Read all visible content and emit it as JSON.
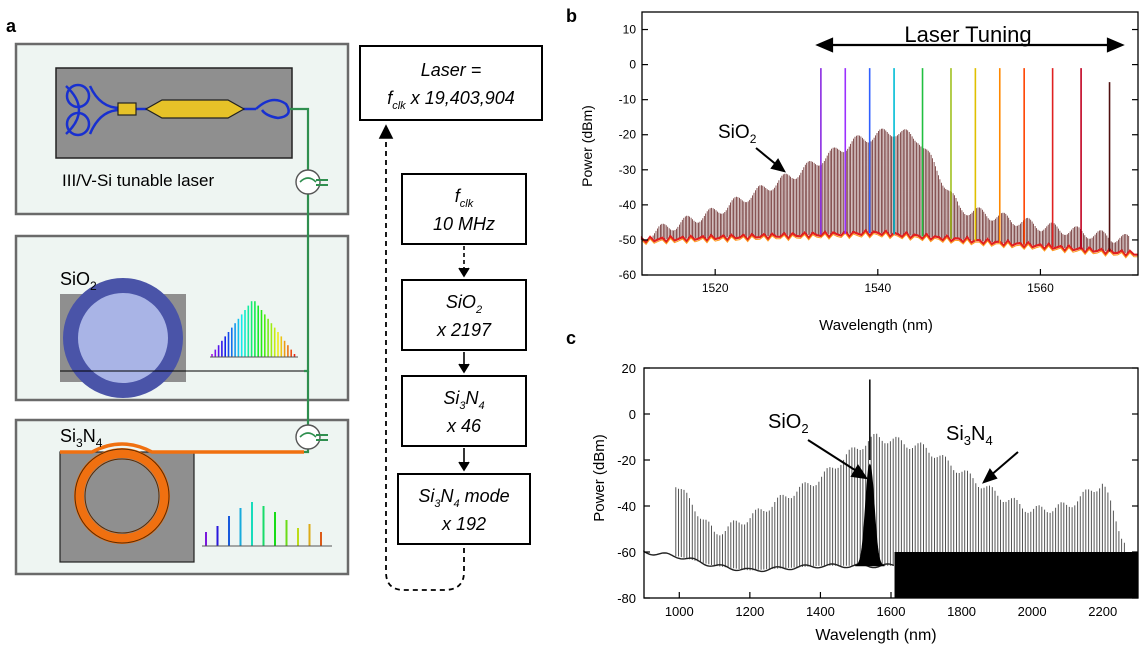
{
  "panel_a": {
    "label": "a",
    "laser_box": "III/V-Si tunable laser",
    "sio2_box": {
      "base": "SiO",
      "sub": "2"
    },
    "si3n4_box": {
      "base1": "Si",
      "sub1": "3",
      "base2": "N",
      "sub2": "4"
    },
    "laser_eq": {
      "line1": "Laser =",
      "f": "f",
      "clk": "clk",
      "rest": " x 19,403,904"
    },
    "chain": [
      {
        "line1_f": "f",
        "line1_clk": "clk",
        "line2": "10 MHz"
      },
      {
        "line1_base": "SiO",
        "line1_sub": "2",
        "line2": "x 2197"
      },
      {
        "line1_base": "Si",
        "line1_s1": "3",
        "line1_n": "N",
        "line1_s2": "4",
        "line2": "x 46"
      },
      {
        "line1_base": "Si",
        "line1_s1": "3",
        "line1_n": "N",
        "line1_s2": "4",
        "line1_tail": " mode",
        "line2": "x 192"
      }
    ],
    "colors": {
      "laser_bg": "#eef5f2",
      "chip": "#8f8f8f",
      "waveguide": "#2f8f4f",
      "ring_sio2": "#4a54a8",
      "ring_si3n4": "#f07010",
      "laser_wg": "#1830d0",
      "laser_gain": "#e6c228"
    }
  },
  "panel_b": {
    "label": "b",
    "title": "Laser Tuning",
    "annotation": {
      "base": "SiO",
      "sub": "2"
    },
    "ylabel": "Power (dBm)",
    "xlabel": "Wavelength (nm)",
    "xticks": [
      "1520",
      "1540",
      "1560"
    ],
    "yticks": [
      "10",
      "0",
      "-10",
      "-20",
      "-30",
      "-40",
      "-50",
      "-60"
    ]
  },
  "panel_c": {
    "label": "c",
    "annotation_sio2": {
      "base": "SiO",
      "sub": "2"
    },
    "annotation_si3n4": {
      "base1": "Si",
      "sub1": "3",
      "base2": "N",
      "sub2": "4"
    },
    "ylabel": "Power (dBm)",
    "xlabel": "Wavelength (nm)",
    "xticks": [
      "1000",
      "1200",
      "1400",
      "1600",
      "1800",
      "2000",
      "2200"
    ],
    "yticks": [
      "20",
      "0",
      "-20",
      "-40",
      "-60",
      "-80"
    ]
  },
  "chart_data": [
    {
      "type": "line",
      "panel": "b",
      "xlabel": "Wavelength (nm)",
      "ylabel": "Power (dBm)",
      "xlim": [
        1511,
        1572
      ],
      "ylim": [
        -60,
        15
      ],
      "tuning_line_wavelengths": [
        1533,
        1536,
        1539,
        1542,
        1545.5,
        1549,
        1552,
        1555,
        1558,
        1561.5,
        1565,
        1568.5
      ],
      "tuning_line_peaks": [
        -1,
        -1,
        -1,
        -1,
        -1,
        -1,
        -1,
        -1,
        -1,
        -1,
        -1,
        -5
      ],
      "tuning_colors": [
        "#8a2be2",
        "#9b30ff",
        "#3060ff",
        "#00bcd4",
        "#20c040",
        "#a0c020",
        "#e0c000",
        "#ff8800",
        "#ff4400",
        "#e02020",
        "#c00020",
        "#501010"
      ],
      "comb_envelope": {
        "x": [
          1512,
          1520,
          1530,
          1537,
          1540,
          1542,
          1545,
          1550,
          1560,
          1571
        ],
        "y": [
          -48,
          -42,
          -31,
          -22,
          -20,
          -19,
          -21,
          -41,
          -46,
          -50
        ]
      },
      "floor": {
        "x": [
          1511,
          1540,
          1572
        ],
        "y": [
          -50,
          -48,
          -54
        ]
      }
    },
    {
      "type": "line",
      "panel": "c",
      "xlabel": "Wavelength (nm)",
      "ylabel": "Power (dBm)",
      "xlim": [
        900,
        2300
      ],
      "ylim": [
        -80,
        20
      ],
      "si3n4_envelope": {
        "x": [
          990,
          1100,
          1200,
          1300,
          1400,
          1500,
          1560,
          1620,
          1700,
          1800,
          1900,
          2000,
          2100,
          2200,
          2260
        ],
        "y": [
          -30,
          -52,
          -45,
          -36,
          -28,
          -15,
          -10,
          -12,
          -15,
          -25,
          -35,
          -42,
          -40,
          -30,
          -55
        ]
      },
      "sio2_peak": {
        "center": 1540,
        "peak": -22,
        "width": 40
      },
      "pump": {
        "x": 1540,
        "y": 15
      },
      "floor": {
        "x": [
          900,
          1000,
          1100,
          1200,
          1300,
          1400,
          1500,
          1600
        ],
        "y": [
          -60,
          -62,
          -66,
          -68,
          -67,
          -66,
          -66,
          -66
        ]
      },
      "black_floor": {
        "x_start": 1610,
        "x_end": 2300,
        "y_top": -60,
        "y_bottom": -80
      }
    }
  ]
}
